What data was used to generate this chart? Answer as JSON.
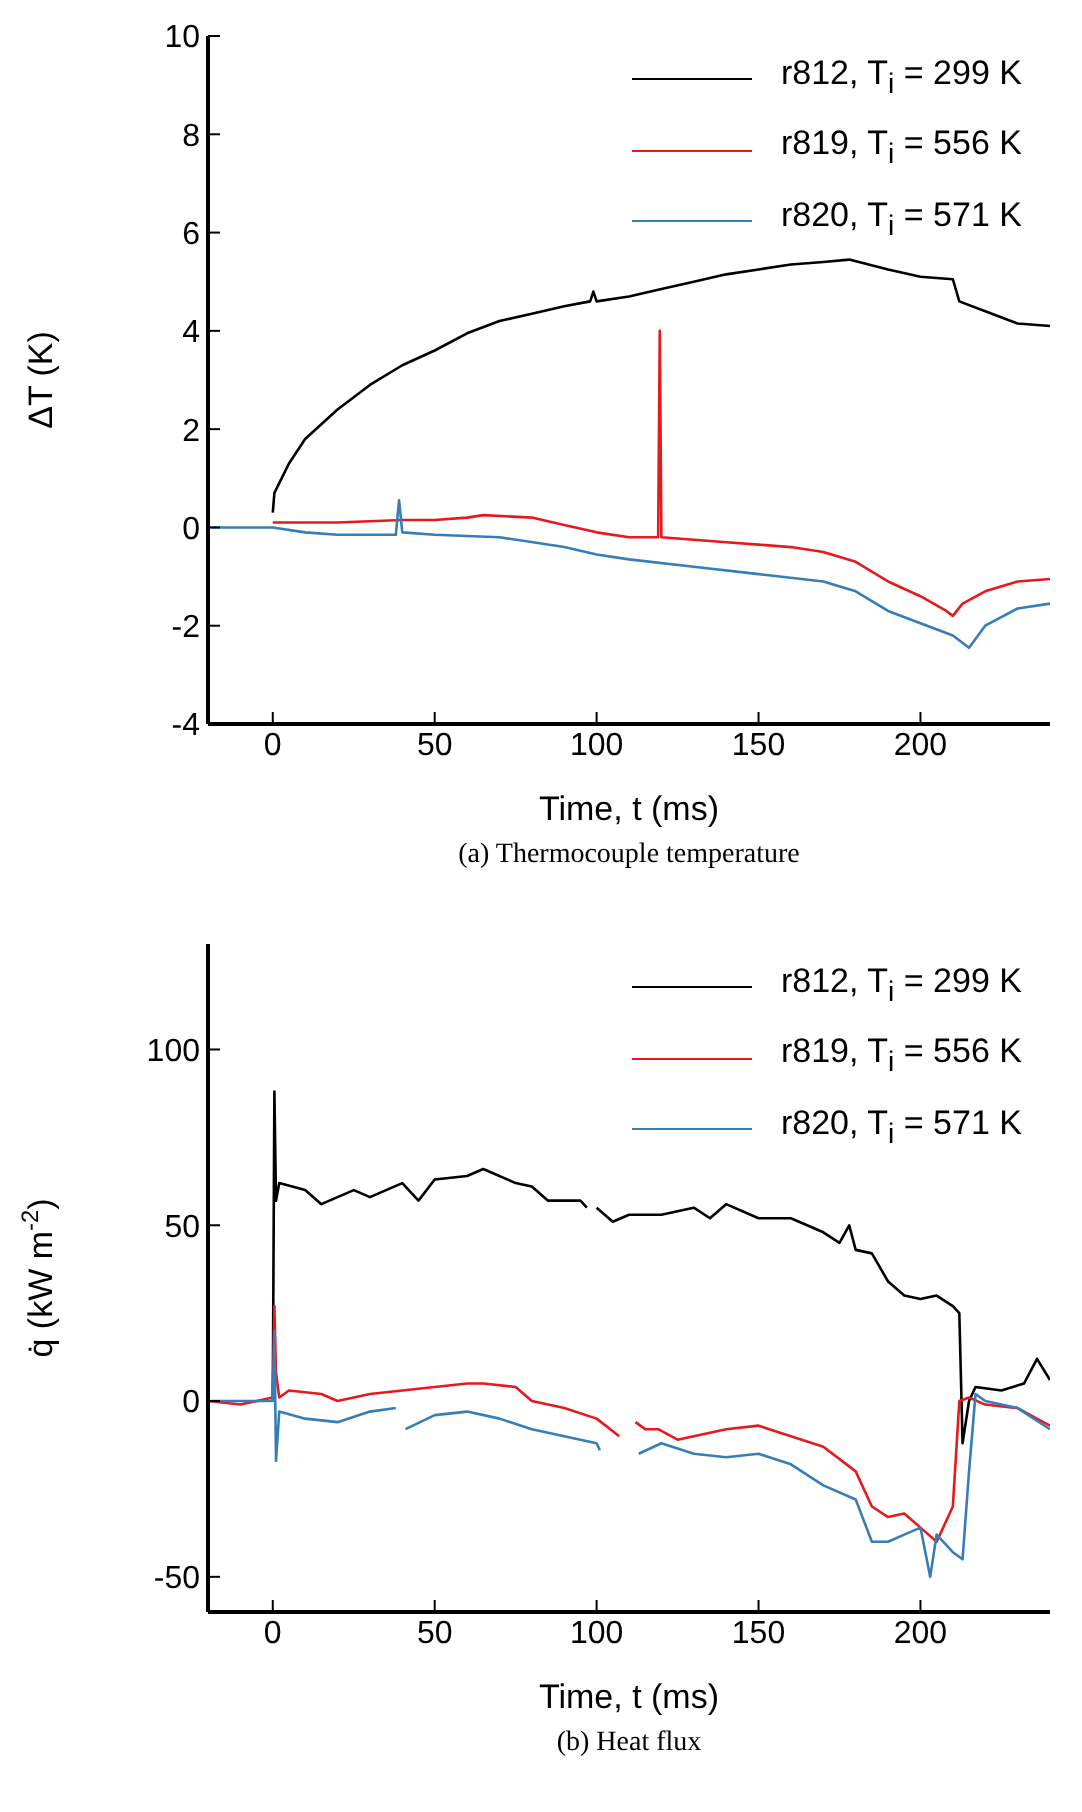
{
  "chart_data": [
    {
      "type": "line",
      "xlabel": "Time, t (ms)",
      "ylabel": "ΔT (K)",
      "xlim": [
        -20,
        240
      ],
      "xticks": [
        0,
        50,
        100,
        150,
        200
      ],
      "ylim": [
        -4,
        10
      ],
      "yticks": [
        -4,
        -2,
        0,
        2,
        4,
        6,
        8,
        10
      ],
      "legend": "top right",
      "grid": false,
      "marker": "none",
      "line_style": "solid",
      "annotations": [
        "(a) Thermocouple temperature"
      ],
      "series": [
        {
          "name": "r812, T$_{i}$ = 299 K",
          "color": "#000000",
          "x": [
            0,
            0.5,
            2,
            5,
            10,
            20,
            30,
            40,
            50,
            60,
            70,
            80,
            90,
            98,
            99,
            100,
            110,
            120,
            130,
            140,
            150,
            160,
            170,
            178,
            190,
            200,
            210,
            212,
            220,
            230,
            240
          ],
          "values": [
            0.3,
            0.7,
            0.9,
            1.3,
            1.8,
            2.4,
            2.9,
            3.3,
            3.6,
            3.95,
            4.2,
            4.35,
            4.5,
            4.6,
            4.8,
            4.6,
            4.7,
            4.85,
            5.0,
            5.15,
            5.25,
            5.35,
            5.4,
            5.45,
            5.25,
            5.1,
            5.05,
            4.6,
            4.4,
            4.15,
            4.1
          ]
        },
        {
          "name": "r819, T$_{i}$ = 556 K",
          "color": "#e41a1c",
          "x": [
            0,
            20,
            40,
            50,
            60,
            65,
            80,
            90,
            100,
            110,
            119,
            119.5,
            120,
            130,
            140,
            150,
            160,
            170,
            180,
            190,
            200,
            208,
            210,
            213,
            220,
            230,
            240
          ],
          "values": [
            0.1,
            0.1,
            0.15,
            0.15,
            0.2,
            0.25,
            0.2,
            0.05,
            -0.1,
            -0.2,
            -0.2,
            4.0,
            -0.2,
            -0.25,
            -0.3,
            -0.35,
            -0.4,
            -0.5,
            -0.7,
            -1.1,
            -1.4,
            -1.7,
            -1.8,
            -1.55,
            -1.3,
            -1.1,
            -1.05
          ]
        },
        {
          "name": "r820, T$_{i}$ = 571 K",
          "color": "#377eb8",
          "x": [
            -20,
            0,
            10,
            20,
            38,
            39,
            40,
            50,
            70,
            90,
            100,
            110,
            130,
            150,
            170,
            180,
            190,
            200,
            210,
            215,
            220,
            230,
            240
          ],
          "values": [
            0,
            0,
            -0.1,
            -0.15,
            -0.15,
            0.55,
            -0.1,
            -0.15,
            -0.2,
            -0.4,
            -0.55,
            -0.65,
            -0.8,
            -0.95,
            -1.1,
            -1.3,
            -1.7,
            -1.95,
            -2.2,
            -2.45,
            -2.0,
            -1.65,
            -1.55
          ]
        }
      ]
    },
    {
      "type": "line",
      "xlabel": "Time, t (ms)",
      "ylabel": "q̇ (kW m$^{-2}$)",
      "xlim": [
        -20,
        240
      ],
      "xticks": [
        0,
        50,
        100,
        150,
        200
      ],
      "ylim": [
        -60,
        130
      ],
      "yticks": [
        -50,
        0,
        50,
        100
      ],
      "legend": "top right",
      "grid": false,
      "marker": "none",
      "line_style": "solid",
      "annotations": [
        "(b) Heat flux"
      ],
      "series": [
        {
          "name": "r812, T$_{i}$ = 299 K",
          "color": "#000000",
          "x": [
            0,
            0.5,
            1,
            2,
            10,
            15,
            25,
            30,
            40,
            45,
            50,
            60,
            65,
            75,
            80,
            85,
            95,
            97,
            98.5,
            100,
            105,
            110,
            120,
            130,
            135,
            140,
            150,
            160,
            170,
            175,
            178,
            180,
            185,
            190,
            195,
            200,
            205,
            210,
            212,
            213,
            215,
            217,
            225,
            232,
            236,
            240
          ],
          "values": [
            0,
            88,
            57,
            62,
            60,
            56,
            60,
            58,
            62,
            57,
            63,
            64,
            66,
            62,
            61,
            57,
            57,
            55,
            null,
            55,
            51,
            53,
            53,
            55,
            52,
            56,
            52,
            52,
            48,
            45,
            50,
            43,
            42,
            34,
            30,
            29,
            30,
            27,
            25,
            -12,
            0,
            4,
            3,
            5,
            12,
            6
          ]
        },
        {
          "name": "r819, T$_{i}$ = 556 K",
          "color": "#e41a1c",
          "x": [
            -20,
            -10,
            0,
            0.5,
            1,
            2,
            5,
            15,
            20,
            30,
            40,
            50,
            60,
            65,
            75,
            80,
            90,
            100,
            107,
            109,
            112,
            115,
            119,
            125,
            130,
            140,
            150,
            160,
            170,
            180,
            185,
            190,
            195,
            200,
            205,
            210,
            212,
            215,
            220,
            230,
            240
          ],
          "values": [
            0,
            -1,
            1,
            27,
            8,
            1,
            3,
            2,
            0,
            2,
            3,
            4,
            5,
            5,
            4,
            0,
            -2,
            -5,
            -10,
            null,
            -6,
            -8,
            -8,
            -11,
            -10,
            -8,
            -7,
            -10,
            -13,
            -20,
            -30,
            -33,
            -32,
            -36,
            -40,
            -30,
            0,
            1,
            -1,
            -2,
            -7
          ]
        },
        {
          "name": "r820, T$_{i}$ = 571 K",
          "color": "#377eb8",
          "x": [
            -20,
            -10,
            0,
            0.5,
            1,
            2,
            10,
            20,
            30,
            38,
            39.5,
            41,
            50,
            60,
            70,
            80,
            90,
            100,
            101,
            107,
            113,
            120,
            130,
            140,
            150,
            160,
            170,
            180,
            185,
            190,
            195,
            200,
            203,
            205,
            210,
            213,
            215,
            217,
            220,
            230,
            240
          ],
          "values": [
            0,
            0,
            0,
            20,
            -17,
            -3,
            -5,
            -6,
            -3,
            -2,
            null,
            -8,
            -4,
            -3,
            -5,
            -8,
            -10,
            -12,
            -14,
            null,
            -15,
            -12,
            -15,
            -16,
            -15,
            -18,
            -24,
            -28,
            -40,
            -40,
            -38,
            -36,
            -50,
            -38,
            -43,
            -45,
            -20,
            2,
            0,
            -2,
            -8
          ]
        }
      ]
    }
  ]
}
